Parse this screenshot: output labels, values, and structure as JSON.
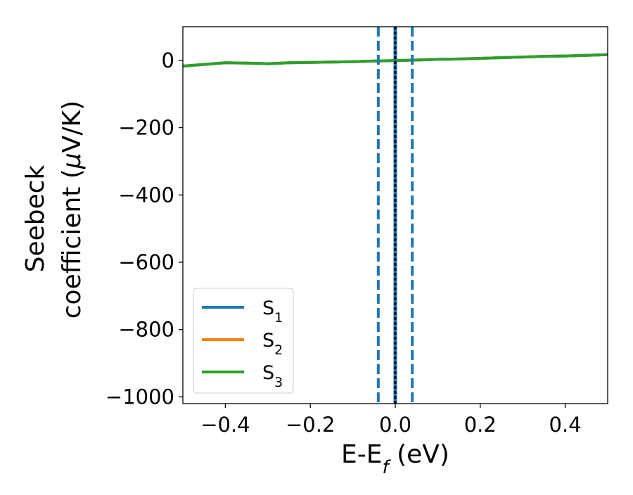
{
  "chart_data": {
    "type": "line",
    "title": "",
    "xlabel": "E-E",
    "xlabel_subscript": "f",
    "xlabel_unit": " (eV)",
    "ylabel_line1": "Seebeck",
    "ylabel_line2": "coefficient  (",
    "ylabel_mu": "μ",
    "ylabel_unit_end": "V/K)",
    "xlim": [
      -0.5,
      0.5
    ],
    "ylim": [
      -1020,
      100
    ],
    "xticks": [
      -0.4,
      -0.2,
      0.0,
      0.2,
      0.4
    ],
    "xtick_labels": [
      "−0.4",
      "−0.2",
      "0.0",
      "0.2",
      "0.4"
    ],
    "yticks": [
      0,
      -200,
      -400,
      -600,
      -800,
      -1000
    ],
    "ytick_labels": [
      "0",
      "−200",
      "−400",
      "−600",
      "−800",
      "−1000"
    ],
    "grid": false,
    "legend_position": "lower-left",
    "series": [
      {
        "name": "S",
        "subscript": "1",
        "color": "#1f77b4",
        "x": [
          -0.5,
          -0.45,
          -0.4,
          -0.35,
          -0.3,
          -0.25,
          -0.2,
          -0.15,
          -0.1,
          -0.05,
          0.0,
          0.05,
          0.1,
          0.15,
          0.2,
          0.25,
          0.3,
          0.35,
          0.4,
          0.45,
          0.5
        ],
        "y": [
          -17,
          -12,
          -7,
          -8,
          -10,
          -7,
          -6,
          -5,
          -4,
          -2,
          -1,
          1,
          3,
          4,
          6,
          8,
          10,
          12,
          13,
          15,
          17
        ]
      },
      {
        "name": "S",
        "subscript": "2",
        "color": "#ff7f0e",
        "x": [
          -0.5,
          -0.45,
          -0.4,
          -0.35,
          -0.3,
          -0.25,
          -0.2,
          -0.15,
          -0.1,
          -0.05,
          0.0,
          0.05,
          0.1,
          0.15,
          0.2,
          0.25,
          0.3,
          0.35,
          0.4,
          0.45,
          0.5
        ],
        "y": [
          -17,
          -12,
          -7,
          -8,
          -10,
          -7,
          -6,
          -5,
          -4,
          -2,
          -1,
          1,
          3,
          4,
          6,
          8,
          10,
          12,
          13,
          15,
          17
        ]
      },
      {
        "name": "S",
        "subscript": "3",
        "color": "#2ca02c",
        "x": [
          -0.5,
          -0.45,
          -0.4,
          -0.35,
          -0.3,
          -0.25,
          -0.2,
          -0.15,
          -0.1,
          -0.05,
          0.0,
          0.05,
          0.1,
          0.15,
          0.2,
          0.25,
          0.3,
          0.35,
          0.4,
          0.45,
          0.5
        ],
        "y": [
          -17,
          -12,
          -7,
          -8,
          -10,
          -7,
          -6,
          -5,
          -4,
          -2,
          -1,
          1,
          3,
          4,
          6,
          8,
          10,
          12,
          13,
          15,
          17
        ]
      }
    ],
    "vertical_lines": [
      {
        "x": -0.04,
        "style": "dashed",
        "color": "#1f77b4"
      },
      {
        "x": 0.04,
        "style": "dashed",
        "color": "#1f77b4"
      },
      {
        "x": 0.0,
        "style": "solid",
        "color": "#1f77b4"
      },
      {
        "x": 0.0,
        "style": "dotted",
        "color": "#000000"
      }
    ]
  }
}
